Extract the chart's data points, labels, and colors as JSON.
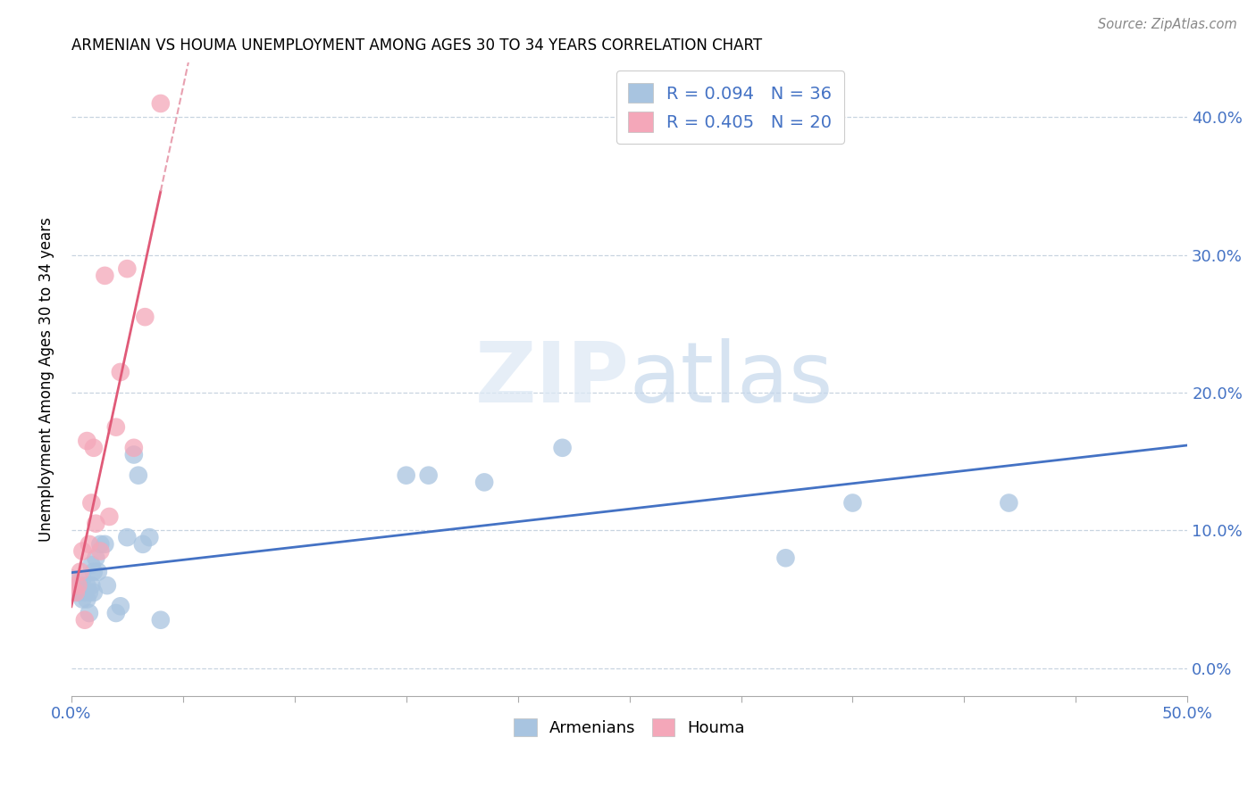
{
  "title": "ARMENIAN VS HOUMA UNEMPLOYMENT AMONG AGES 30 TO 34 YEARS CORRELATION CHART",
  "source": "Source: ZipAtlas.com",
  "ylabel": "Unemployment Among Ages 30 to 34 years",
  "xlim": [
    0,
    0.5
  ],
  "ylim": [
    -0.02,
    0.44
  ],
  "xticks": [
    0.0,
    0.05,
    0.1,
    0.15,
    0.2,
    0.25,
    0.3,
    0.35,
    0.4,
    0.45,
    0.5
  ],
  "yticks": [
    0.0,
    0.1,
    0.2,
    0.3,
    0.4
  ],
  "ytick_labels": [
    "0.0%",
    "10.0%",
    "20.0%",
    "30.0%",
    "40.0%"
  ],
  "legend_r_armenian": "R = 0.094",
  "legend_n_armenian": "N = 36",
  "legend_r_houma": "R = 0.405",
  "legend_n_houma": "N = 20",
  "armenian_color": "#a8c4e0",
  "houma_color": "#f4a7b9",
  "armenian_line_color": "#4472c4",
  "houma_line_color": "#e05a78",
  "houma_line_dash_color": "#e8a0b0",
  "watermark_zip": "ZIP",
  "watermark_atlas": "atlas",
  "armenian_x": [
    0.0,
    0.002,
    0.003,
    0.004,
    0.005,
    0.005,
    0.006,
    0.006,
    0.007,
    0.007,
    0.008,
    0.008,
    0.009,
    0.009,
    0.01,
    0.01,
    0.011,
    0.012,
    0.013,
    0.015,
    0.016,
    0.02,
    0.022,
    0.025,
    0.028,
    0.03,
    0.032,
    0.035,
    0.04,
    0.15,
    0.16,
    0.185,
    0.22,
    0.32,
    0.35,
    0.42
  ],
  "armenian_y": [
    0.065,
    0.055,
    0.055,
    0.06,
    0.05,
    0.065,
    0.055,
    0.055,
    0.05,
    0.06,
    0.04,
    0.055,
    0.06,
    0.075,
    0.055,
    0.07,
    0.08,
    0.07,
    0.09,
    0.09,
    0.06,
    0.04,
    0.045,
    0.095,
    0.155,
    0.14,
    0.09,
    0.095,
    0.035,
    0.14,
    0.14,
    0.135,
    0.16,
    0.08,
    0.12,
    0.12
  ],
  "houma_x": [
    0.0,
    0.002,
    0.003,
    0.004,
    0.005,
    0.006,
    0.007,
    0.008,
    0.009,
    0.01,
    0.011,
    0.013,
    0.015,
    0.017,
    0.02,
    0.022,
    0.025,
    0.028,
    0.033,
    0.04
  ],
  "houma_y": [
    0.06,
    0.055,
    0.06,
    0.07,
    0.085,
    0.035,
    0.165,
    0.09,
    0.12,
    0.16,
    0.105,
    0.085,
    0.285,
    0.11,
    0.175,
    0.215,
    0.29,
    0.16,
    0.255,
    0.41
  ]
}
